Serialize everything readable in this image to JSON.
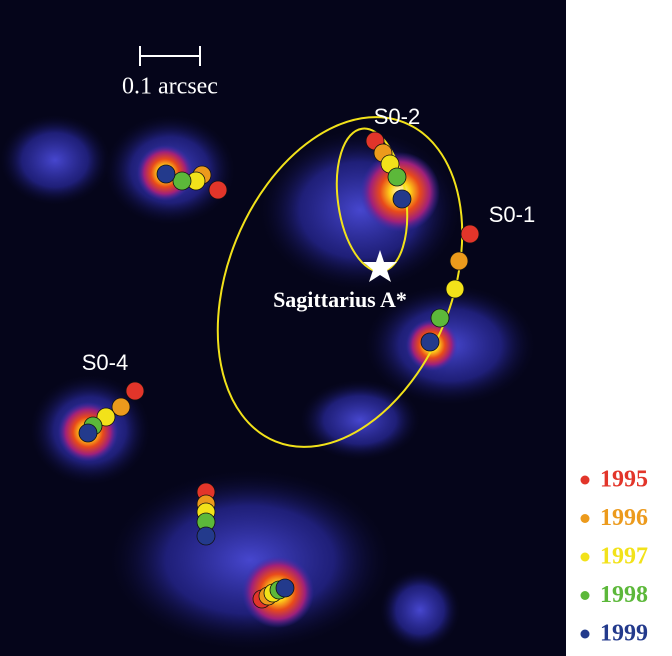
{
  "scale_bar": {
    "label": "0.1 arcsec"
  },
  "stars": [
    {
      "label": "S0-2"
    },
    {
      "label": "S0-1"
    },
    {
      "label": "S0-4"
    }
  ],
  "black_hole": {
    "label": "Sagittarius A*"
  },
  "legend": [
    {
      "year": "1995",
      "color": "#e2352a"
    },
    {
      "year": "1996",
      "color": "#ec9a1c"
    },
    {
      "year": "1997",
      "color": "#f2e21a"
    },
    {
      "year": "1998",
      "color": "#5cb83a"
    },
    {
      "year": "1999",
      "color": "#233a8c"
    }
  ]
}
